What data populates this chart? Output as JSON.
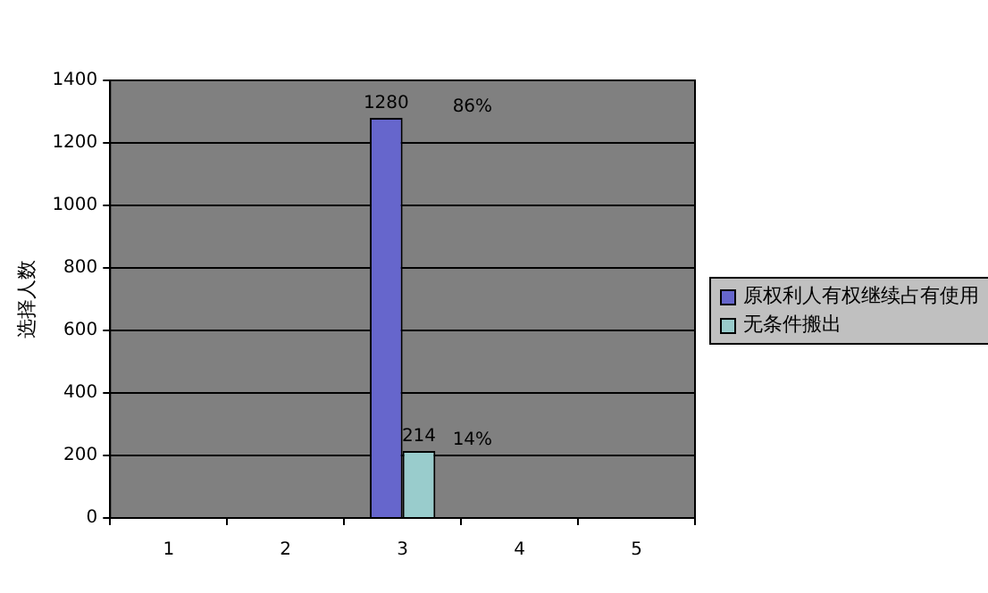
{
  "chart_data": {
    "type": "bar",
    "ylabel": "选择人数",
    "categories": [
      "1",
      "2",
      "3",
      "4",
      "5"
    ],
    "series": [
      {
        "name": "原权利人有权继续占有使用",
        "color": "#6666cc",
        "values": [
          null,
          null,
          1280,
          null,
          null
        ]
      },
      {
        "name": "无条件搬出",
        "color": "#99cccc",
        "values": [
          null,
          null,
          214,
          null,
          null
        ]
      }
    ],
    "ylim": [
      0,
      1400
    ],
    "yticks": [
      0,
      200,
      400,
      600,
      800,
      1000,
      1200,
      1400
    ],
    "grid": "y",
    "legend": "right",
    "data_labels": true,
    "annotations": [
      {
        "text": "86%",
        "x": "3",
        "y": 1280
      },
      {
        "text": "14%",
        "x": "3",
        "y": 214
      }
    ]
  }
}
